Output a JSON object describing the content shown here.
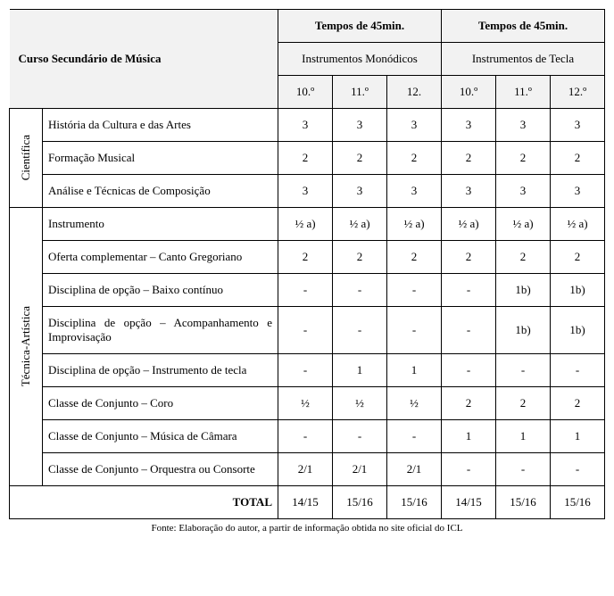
{
  "header": {
    "title": "Curso Secundário de Música",
    "group1": "Tempos de 45min.",
    "group2": "Tempos de 45min.",
    "sublabel1": "Instrumentos Monódicos",
    "sublabel2": "Instrumentos de Tecla",
    "y1": "10.º",
    "y2": "11.º",
    "y3": "12.",
    "y4": "10.º",
    "y5": "11.º",
    "y6": "12.º"
  },
  "side": {
    "cientifica": "Científica",
    "tecnica": "Técnica-Artística"
  },
  "rows": {
    "r1": {
      "name": "História da Cultura e das Artes",
      "c1": "3",
      "c2": "3",
      "c3": "3",
      "c4": "3",
      "c5": "3",
      "c6": "3"
    },
    "r2": {
      "name": "Formação Musical",
      "c1": "2",
      "c2": "2",
      "c3": "2",
      "c4": "2",
      "c5": "2",
      "c6": "2"
    },
    "r3": {
      "name": "Análise e Técnicas de Composição",
      "c1": "3",
      "c2": "3",
      "c3": "3",
      "c4": "3",
      "c5": "3",
      "c6": "3"
    },
    "r4": {
      "name": "Instrumento",
      "c1": "½ a)",
      "c2": "½ a)",
      "c3": "½ a)",
      "c4": "½ a)",
      "c5": "½ a)",
      "c6": "½ a)"
    },
    "r5": {
      "name": "Oferta complementar – Canto Gregoriano",
      "c1": "2",
      "c2": "2",
      "c3": "2",
      "c4": "2",
      "c5": "2",
      "c6": "2"
    },
    "r6": {
      "name": "Disciplina de opção – Baixo contínuo",
      "c1": "-",
      "c2": "-",
      "c3": "-",
      "c4": "-",
      "c5": "1b)",
      "c6": "1b)"
    },
    "r7": {
      "name": "Disciplina de opção – Acompanhamento e Improvisação",
      "c1": "-",
      "c2": "-",
      "c3": "-",
      "c4": "-",
      "c5": "1b)",
      "c6": "1b)"
    },
    "r8": {
      "name": "Disciplina de opção – Instrumento de tecla",
      "c1": "-",
      "c2": "1",
      "c3": "1",
      "c4": "-",
      "c5": "-",
      "c6": "-"
    },
    "r9": {
      "name": "Classe de Conjunto – Coro",
      "c1": "½",
      "c2": "½",
      "c3": "½",
      "c4": "2",
      "c5": "2",
      "c6": "2"
    },
    "r10": {
      "name": "Classe de Conjunto – Música de Câmara",
      "c1": "-",
      "c2": "-",
      "c3": "-",
      "c4": "1",
      "c5": "1",
      "c6": "1"
    },
    "r11": {
      "name": "Classe de Conjunto – Orquestra ou Consorte",
      "c1": "2/1",
      "c2": "2/1",
      "c3": "2/1",
      "c4": "-",
      "c5": "-",
      "c6": "-"
    }
  },
  "total": {
    "label": "TOTAL",
    "c1": "14/15",
    "c2": "15/16",
    "c3": "15/16",
    "c4": "14/15",
    "c5": "15/16",
    "c6": "15/16"
  },
  "source": "Fonte: Elaboração do autor, a partir de informação obtida no site oficial do ICL"
}
